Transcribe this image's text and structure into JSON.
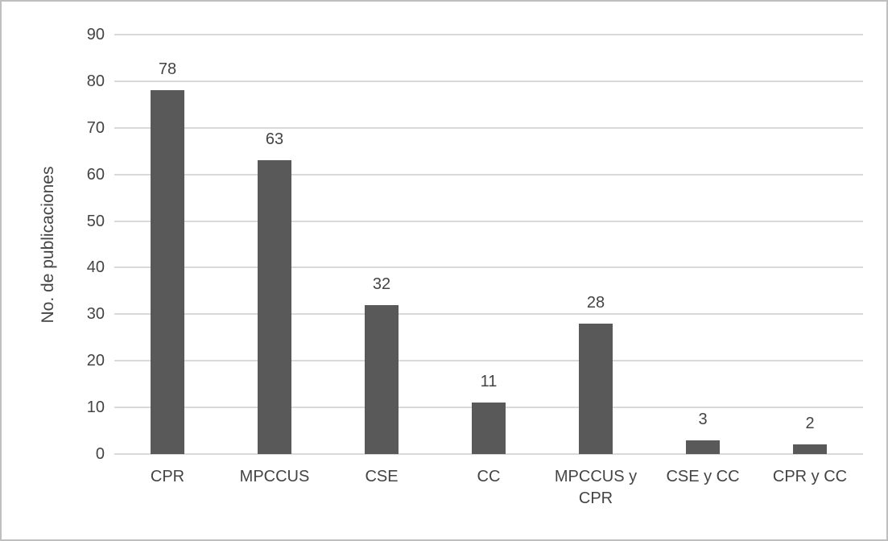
{
  "chart_data": {
    "type": "bar",
    "title": "",
    "categories": [
      "CPR",
      "MPCCUS",
      "CSE",
      "CC",
      "MPCCUS y CPR",
      "CSE y CC",
      "CPR y CC"
    ],
    "values": [
      78,
      63,
      32,
      11,
      28,
      3,
      2
    ],
    "data_labels": [
      "78",
      "63",
      "32",
      "11",
      "28",
      "3",
      "2"
    ],
    "xlabel": "",
    "ylabel": "No. de publicaciones",
    "ylim": [
      0,
      90
    ],
    "ytick_step": 10,
    "yticks": [
      "90",
      "80",
      "70",
      "60",
      "50",
      "40",
      "30",
      "20",
      "10",
      "0"
    ],
    "grid": "horizontal",
    "legend": "none",
    "colors": {
      "bar": "#595959",
      "gridline": "#D9D9D9",
      "text": "#444444",
      "frame_border": "#BFBFBF",
      "background": "#FFFFFF"
    }
  }
}
